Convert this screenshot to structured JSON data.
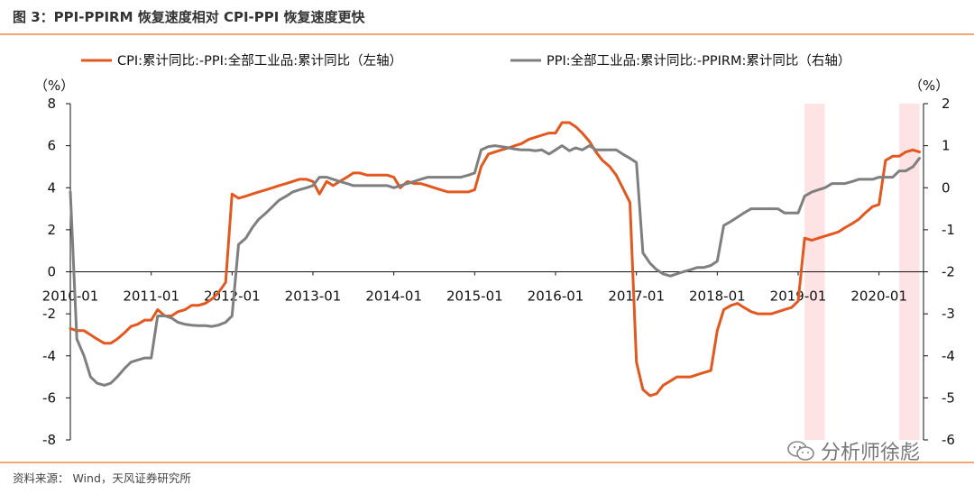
{
  "figure_title": "图 3：PPI-PPIRM 恢复速度相对 CPI-PPI 恢复速度更快",
  "source_note": "资料来源：  Wind，天风证券研究所",
  "watermark_text": "分析师徐彪",
  "colors": {
    "series_left": "#e2581e",
    "series_right": "#7f7f7f",
    "shade": "#fde3e3",
    "rule": "#f0a875"
  },
  "chart_data": {
    "type": "line",
    "x_tick_labels": [
      "2010-01",
      "2011-01",
      "2012-01",
      "2013-01",
      "2014-01",
      "2015-01",
      "2016-01",
      "2017-01",
      "2018-01",
      "2019-01",
      "2020-01"
    ],
    "x_range": [
      2010.0,
      2020.55
    ],
    "left_axis": {
      "unit_label": "（%）",
      "range": [
        -8,
        8
      ],
      "ticks": [
        8,
        6,
        4,
        2,
        0,
        -2,
        -4,
        -6,
        -8
      ]
    },
    "right_axis": {
      "unit_label": "（%）",
      "range": [
        -6,
        2
      ],
      "ticks": [
        2,
        1,
        0,
        -1,
        -2,
        -3,
        -4,
        -5,
        -6
      ]
    },
    "shaded_ranges": [
      [
        2019.08,
        2019.33
      ],
      [
        2020.25,
        2020.5
      ]
    ],
    "series": [
      {
        "name": "CPI:累计同比:-PPI:全部工业品:累计同比（左轴）",
        "axis": "left",
        "color": "#e2581e",
        "points": [
          [
            2010.0,
            -2.7
          ],
          [
            2010.08,
            -2.8
          ],
          [
            2010.17,
            -2.8
          ],
          [
            2010.25,
            -3.0
          ],
          [
            2010.33,
            -3.2
          ],
          [
            2010.42,
            -3.4
          ],
          [
            2010.5,
            -3.4
          ],
          [
            2010.58,
            -3.2
          ],
          [
            2010.67,
            -2.9
          ],
          [
            2010.75,
            -2.6
          ],
          [
            2010.83,
            -2.5
          ],
          [
            2010.92,
            -2.3
          ],
          [
            2011.0,
            -2.3
          ],
          [
            2011.08,
            -1.8
          ],
          [
            2011.17,
            -2.1
          ],
          [
            2011.25,
            -2.1
          ],
          [
            2011.33,
            -1.9
          ],
          [
            2011.42,
            -1.8
          ],
          [
            2011.5,
            -1.6
          ],
          [
            2011.58,
            -1.6
          ],
          [
            2011.67,
            -1.5
          ],
          [
            2011.75,
            -1.3
          ],
          [
            2011.83,
            -1.0
          ],
          [
            2011.92,
            -0.5
          ],
          [
            2012.0,
            3.7
          ],
          [
            2012.08,
            3.5
          ],
          [
            2012.17,
            3.6
          ],
          [
            2012.25,
            3.7
          ],
          [
            2012.33,
            3.8
          ],
          [
            2012.42,
            3.9
          ],
          [
            2012.5,
            4.0
          ],
          [
            2012.58,
            4.1
          ],
          [
            2012.67,
            4.2
          ],
          [
            2012.75,
            4.3
          ],
          [
            2012.83,
            4.4
          ],
          [
            2012.92,
            4.4
          ],
          [
            2013.0,
            4.3
          ],
          [
            2013.08,
            3.7
          ],
          [
            2013.17,
            4.3
          ],
          [
            2013.25,
            4.1
          ],
          [
            2013.33,
            4.3
          ],
          [
            2013.42,
            4.5
          ],
          [
            2013.5,
            4.7
          ],
          [
            2013.58,
            4.7
          ],
          [
            2013.67,
            4.6
          ],
          [
            2013.75,
            4.6
          ],
          [
            2013.83,
            4.6
          ],
          [
            2013.92,
            4.6
          ],
          [
            2014.0,
            4.5
          ],
          [
            2014.08,
            4.0
          ],
          [
            2014.17,
            4.3
          ],
          [
            2014.25,
            4.2
          ],
          [
            2014.33,
            4.2
          ],
          [
            2014.42,
            4.1
          ],
          [
            2014.5,
            4.0
          ],
          [
            2014.58,
            3.9
          ],
          [
            2014.67,
            3.8
          ],
          [
            2014.75,
            3.8
          ],
          [
            2014.83,
            3.8
          ],
          [
            2014.92,
            3.8
          ],
          [
            2015.0,
            3.9
          ],
          [
            2015.08,
            5.0
          ],
          [
            2015.17,
            5.6
          ],
          [
            2015.25,
            5.7
          ],
          [
            2015.33,
            5.8
          ],
          [
            2015.42,
            5.9
          ],
          [
            2015.5,
            6.0
          ],
          [
            2015.58,
            6.1
          ],
          [
            2015.67,
            6.3
          ],
          [
            2015.75,
            6.4
          ],
          [
            2015.83,
            6.5
          ],
          [
            2015.92,
            6.6
          ],
          [
            2016.0,
            6.6
          ],
          [
            2016.08,
            7.1
          ],
          [
            2016.17,
            7.1
          ],
          [
            2016.25,
            6.9
          ],
          [
            2016.33,
            6.6
          ],
          [
            2016.42,
            6.2
          ],
          [
            2016.5,
            5.7
          ],
          [
            2016.58,
            5.3
          ],
          [
            2016.67,
            5.0
          ],
          [
            2016.75,
            4.6
          ],
          [
            2016.83,
            4.0
          ],
          [
            2016.92,
            3.3
          ],
          [
            2017.0,
            -4.3
          ],
          [
            2017.08,
            -5.6
          ],
          [
            2017.17,
            -5.9
          ],
          [
            2017.25,
            -5.8
          ],
          [
            2017.33,
            -5.4
          ],
          [
            2017.42,
            -5.2
          ],
          [
            2017.5,
            -5.0
          ],
          [
            2017.58,
            -5.0
          ],
          [
            2017.67,
            -5.0
          ],
          [
            2017.75,
            -4.9
          ],
          [
            2017.83,
            -4.8
          ],
          [
            2017.92,
            -4.7
          ],
          [
            2018.0,
            -2.8
          ],
          [
            2018.08,
            -1.8
          ],
          [
            2018.17,
            -1.6
          ],
          [
            2018.25,
            -1.5
          ],
          [
            2018.33,
            -1.7
          ],
          [
            2018.42,
            -1.9
          ],
          [
            2018.5,
            -2.0
          ],
          [
            2018.58,
            -2.0
          ],
          [
            2018.67,
            -2.0
          ],
          [
            2018.75,
            -1.9
          ],
          [
            2018.83,
            -1.8
          ],
          [
            2018.92,
            -1.7
          ],
          [
            2019.0,
            -1.4
          ],
          [
            2019.08,
            1.6
          ],
          [
            2019.17,
            1.5
          ],
          [
            2019.25,
            1.6
          ],
          [
            2019.33,
            1.7
          ],
          [
            2019.42,
            1.8
          ],
          [
            2019.5,
            1.9
          ],
          [
            2019.58,
            2.1
          ],
          [
            2019.67,
            2.3
          ],
          [
            2019.75,
            2.5
          ],
          [
            2019.83,
            2.8
          ],
          [
            2019.92,
            3.1
          ],
          [
            2020.0,
            3.2
          ],
          [
            2020.08,
            5.3
          ],
          [
            2020.17,
            5.5
          ],
          [
            2020.25,
            5.5
          ],
          [
            2020.33,
            5.7
          ],
          [
            2020.42,
            5.8
          ],
          [
            2020.5,
            5.7
          ]
        ]
      },
      {
        "name": "PPI:全部工业品:累计同比:-PPIRM:累计同比（右轴）",
        "axis": "right",
        "color": "#7f7f7f",
        "points": [
          [
            2010.0,
            -0.1
          ],
          [
            2010.08,
            -3.6
          ],
          [
            2010.17,
            -4.0
          ],
          [
            2010.25,
            -4.5
          ],
          [
            2010.33,
            -4.65
          ],
          [
            2010.42,
            -4.7
          ],
          [
            2010.5,
            -4.65
          ],
          [
            2010.58,
            -4.5
          ],
          [
            2010.67,
            -4.3
          ],
          [
            2010.75,
            -4.15
          ],
          [
            2010.83,
            -4.1
          ],
          [
            2010.92,
            -4.05
          ],
          [
            2011.0,
            -4.05
          ],
          [
            2011.08,
            -3.05
          ],
          [
            2011.17,
            -3.05
          ],
          [
            2011.25,
            -3.1
          ],
          [
            2011.33,
            -3.2
          ],
          [
            2011.42,
            -3.25
          ],
          [
            2011.5,
            -3.27
          ],
          [
            2011.58,
            -3.28
          ],
          [
            2011.67,
            -3.28
          ],
          [
            2011.75,
            -3.3
          ],
          [
            2011.83,
            -3.27
          ],
          [
            2011.92,
            -3.2
          ],
          [
            2012.0,
            -3.05
          ],
          [
            2012.08,
            -1.35
          ],
          [
            2012.17,
            -1.2
          ],
          [
            2012.25,
            -0.95
          ],
          [
            2012.33,
            -0.75
          ],
          [
            2012.42,
            -0.6
          ],
          [
            2012.5,
            -0.45
          ],
          [
            2012.58,
            -0.3
          ],
          [
            2012.67,
            -0.2
          ],
          [
            2012.75,
            -0.1
          ],
          [
            2012.83,
            -0.05
          ],
          [
            2012.92,
            0.0
          ],
          [
            2013.0,
            0.05
          ],
          [
            2013.08,
            0.25
          ],
          [
            2013.17,
            0.25
          ],
          [
            2013.25,
            0.2
          ],
          [
            2013.33,
            0.15
          ],
          [
            2013.42,
            0.1
          ],
          [
            2013.5,
            0.05
          ],
          [
            2013.58,
            0.05
          ],
          [
            2013.67,
            0.05
          ],
          [
            2013.75,
            0.05
          ],
          [
            2013.83,
            0.05
          ],
          [
            2013.92,
            0.05
          ],
          [
            2014.0,
            0.0
          ],
          [
            2014.08,
            0.05
          ],
          [
            2014.17,
            0.1
          ],
          [
            2014.25,
            0.15
          ],
          [
            2014.33,
            0.2
          ],
          [
            2014.42,
            0.25
          ],
          [
            2014.5,
            0.25
          ],
          [
            2014.58,
            0.25
          ],
          [
            2014.67,
            0.25
          ],
          [
            2014.75,
            0.25
          ],
          [
            2014.83,
            0.25
          ],
          [
            2014.92,
            0.3
          ],
          [
            2015.0,
            0.35
          ],
          [
            2015.08,
            0.9
          ],
          [
            2015.17,
            0.98
          ],
          [
            2015.25,
            1.0
          ],
          [
            2015.33,
            0.98
          ],
          [
            2015.42,
            0.95
          ],
          [
            2015.5,
            0.92
          ],
          [
            2015.58,
            0.9
          ],
          [
            2015.67,
            0.9
          ],
          [
            2015.75,
            0.88
          ],
          [
            2015.83,
            0.9
          ],
          [
            2015.92,
            0.8
          ],
          [
            2016.0,
            0.9
          ],
          [
            2016.08,
            1.0
          ],
          [
            2016.17,
            0.88
          ],
          [
            2016.25,
            0.95
          ],
          [
            2016.33,
            0.9
          ],
          [
            2016.42,
            1.0
          ],
          [
            2016.5,
            0.9
          ],
          [
            2016.58,
            0.9
          ],
          [
            2016.67,
            0.9
          ],
          [
            2016.75,
            0.9
          ],
          [
            2016.83,
            0.8
          ],
          [
            2016.92,
            0.7
          ],
          [
            2017.0,
            0.6
          ],
          [
            2017.08,
            -1.55
          ],
          [
            2017.17,
            -1.8
          ],
          [
            2017.25,
            -1.95
          ],
          [
            2017.33,
            -2.05
          ],
          [
            2017.42,
            -2.1
          ],
          [
            2017.5,
            -2.05
          ],
          [
            2017.58,
            -2.0
          ],
          [
            2017.67,
            -1.95
          ],
          [
            2017.75,
            -1.9
          ],
          [
            2017.83,
            -1.9
          ],
          [
            2017.92,
            -1.85
          ],
          [
            2018.0,
            -1.75
          ],
          [
            2018.08,
            -0.9
          ],
          [
            2018.17,
            -0.8
          ],
          [
            2018.25,
            -0.7
          ],
          [
            2018.33,
            -0.6
          ],
          [
            2018.42,
            -0.5
          ],
          [
            2018.5,
            -0.5
          ],
          [
            2018.58,
            -0.5
          ],
          [
            2018.67,
            -0.5
          ],
          [
            2018.75,
            -0.5
          ],
          [
            2018.83,
            -0.6
          ],
          [
            2018.92,
            -0.6
          ],
          [
            2019.0,
            -0.6
          ],
          [
            2019.08,
            -0.2
          ],
          [
            2019.17,
            -0.1
          ],
          [
            2019.25,
            -0.05
          ],
          [
            2019.33,
            0.0
          ],
          [
            2019.42,
            0.1
          ],
          [
            2019.5,
            0.1
          ],
          [
            2019.58,
            0.1
          ],
          [
            2019.67,
            0.15
          ],
          [
            2019.75,
            0.2
          ],
          [
            2019.83,
            0.2
          ],
          [
            2019.92,
            0.2
          ],
          [
            2020.0,
            0.25
          ],
          [
            2020.08,
            0.25
          ],
          [
            2020.17,
            0.25
          ],
          [
            2020.25,
            0.4
          ],
          [
            2020.33,
            0.4
          ],
          [
            2020.42,
            0.5
          ],
          [
            2020.5,
            0.7
          ]
        ]
      }
    ]
  }
}
